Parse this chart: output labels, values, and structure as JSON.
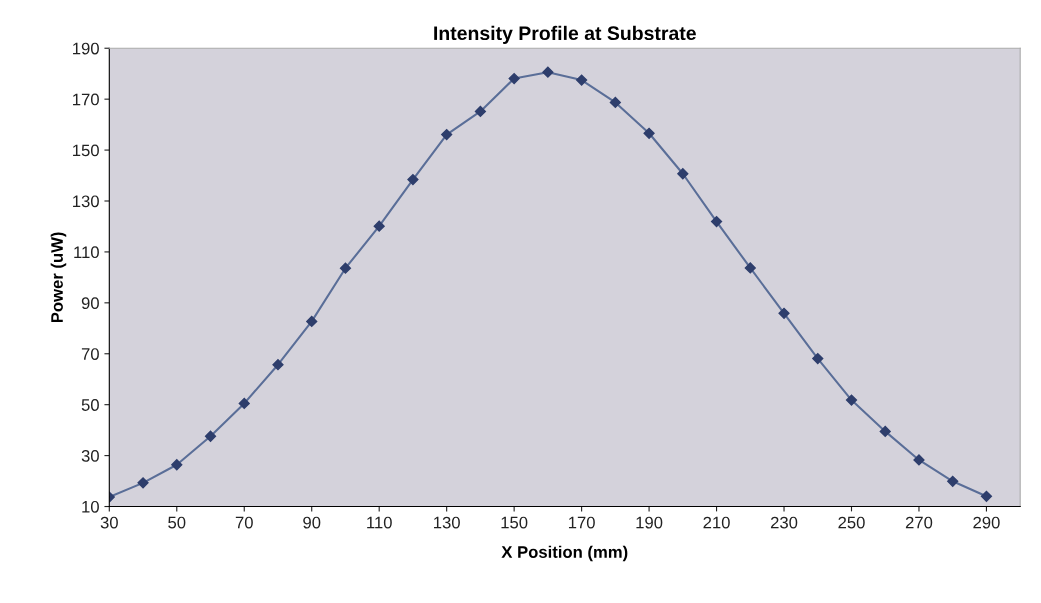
{
  "chart_data": {
    "type": "line",
    "title": "Intensity Profile at Substrate",
    "xlabel": "X Position (mm)",
    "ylabel": "Power (uW)",
    "x": [
      30,
      40,
      50,
      60,
      70,
      80,
      90,
      100,
      110,
      120,
      130,
      140,
      150,
      160,
      170,
      180,
      190,
      200,
      210,
      220,
      230,
      240,
      250,
      260,
      270,
      280,
      290
    ],
    "series": [
      {
        "color": "#5a6e98",
        "values": [
          13.7,
          19.3,
          26.4,
          37.6,
          50.5,
          65.7,
          82.7,
          103.6,
          120.1,
          138.4,
          156.1,
          165.2,
          178.1,
          180.6,
          177.5,
          168.7,
          156.6,
          140.7,
          121.9,
          103.7,
          85.9,
          68.1,
          51.8,
          39.5,
          28.3,
          19.9,
          14.0
        ]
      }
    ],
    "xlim": [
      30,
      300
    ],
    "xticks": [
      30,
      50,
      70,
      90,
      110,
      130,
      150,
      170,
      190,
      210,
      230,
      250,
      270,
      290
    ],
    "ylim": [
      10,
      190
    ],
    "yticks": [
      10,
      30,
      50,
      70,
      90,
      110,
      130,
      150,
      170,
      190
    ],
    "grid": false,
    "legend": false,
    "marker": "diamond",
    "line_style": "solid"
  }
}
